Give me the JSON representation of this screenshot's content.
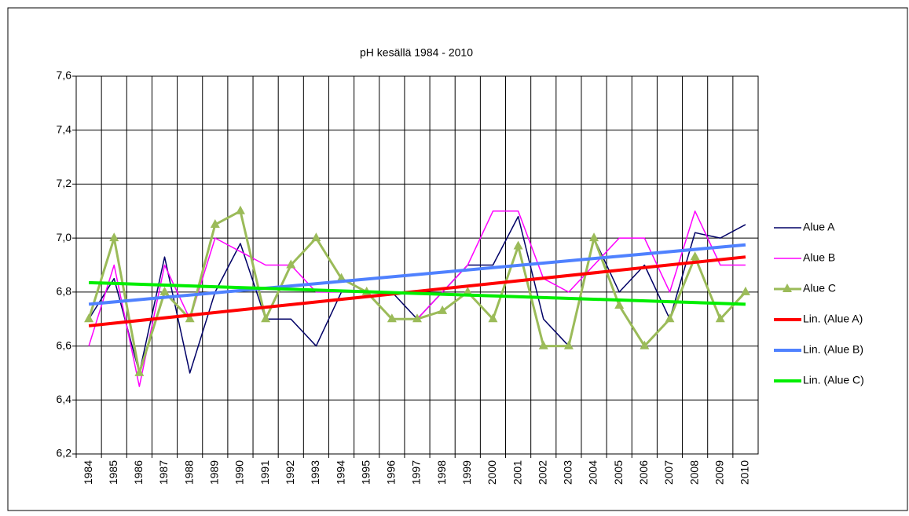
{
  "chart_data": {
    "type": "line",
    "title": "pH kesällä 1984 - 2010",
    "categories": [
      "1984",
      "1985",
      "1986",
      "1987",
      "1988",
      "1989",
      "1990",
      "1991",
      "1992",
      "1993",
      "1994",
      "1995",
      "1996",
      "1997",
      "1998",
      "1999",
      "2000",
      "2001",
      "2002",
      "2003",
      "2004",
      "2005",
      "2006",
      "2007",
      "2008",
      "2009",
      "2010"
    ],
    "series": [
      {
        "name": "Alue A",
        "color": "#000066",
        "values": [
          6.7,
          6.85,
          6.5,
          6.93,
          6.5,
          6.8,
          6.98,
          6.7,
          6.7,
          6.6,
          6.8,
          6.8,
          6.8,
          6.7,
          6.8,
          6.9,
          6.9,
          7.08,
          6.7,
          6.6,
          7.0,
          6.8,
          6.9,
          6.7,
          7.02,
          7.0,
          7.05
        ]
      },
      {
        "name": "Alue B",
        "color": "#ff00ff",
        "values": [
          6.6,
          6.9,
          6.45,
          6.9,
          6.7,
          7.0,
          6.95,
          6.9,
          6.9,
          6.8,
          6.8,
          6.8,
          6.7,
          6.7,
          6.8,
          6.9,
          7.1,
          7.1,
          6.85,
          6.8,
          6.9,
          7.0,
          7.0,
          6.8,
          7.1,
          6.9,
          6.9
        ]
      },
      {
        "name": "Alue C",
        "color": "#9bbb59",
        "marker": "triangle",
        "values": [
          6.7,
          7.0,
          6.5,
          6.8,
          6.7,
          7.05,
          7.1,
          6.7,
          6.9,
          7.0,
          6.85,
          6.8,
          6.7,
          6.7,
          6.73,
          6.8,
          6.7,
          6.97,
          6.6,
          6.6,
          7.0,
          6.75,
          6.6,
          6.7,
          6.93,
          6.7,
          6.8
        ]
      },
      {
        "name": "Lin. (Alue A)",
        "color": "#ff0000",
        "x": [
          "1984",
          "2010"
        ],
        "values": [
          6.675,
          6.93
        ]
      },
      {
        "name": "Lin. (Alue B)",
        "color": "#4f81ff",
        "x": [
          "1984",
          "2010"
        ],
        "values": [
          6.755,
          6.975
        ]
      },
      {
        "name": "Lin. (Alue C)",
        "color": "#00ee00",
        "x": [
          "1984",
          "2010"
        ],
        "values": [
          6.835,
          6.755
        ]
      }
    ],
    "ylim": [
      6.2,
      7.6
    ],
    "yticks": [
      {
        "value": 6.2,
        "label": "6,2"
      },
      {
        "value": 6.4,
        "label": "6,4"
      },
      {
        "value": 6.6,
        "label": "6,6"
      },
      {
        "value": 6.8,
        "label": "6,8"
      },
      {
        "value": 7.0,
        "label": "7,0"
      },
      {
        "value": 7.2,
        "label": "7,2"
      },
      {
        "value": 7.4,
        "label": "7,4"
      },
      {
        "value": 7.6,
        "label": "7,6"
      }
    ],
    "grid": true,
    "legend": "right"
  }
}
